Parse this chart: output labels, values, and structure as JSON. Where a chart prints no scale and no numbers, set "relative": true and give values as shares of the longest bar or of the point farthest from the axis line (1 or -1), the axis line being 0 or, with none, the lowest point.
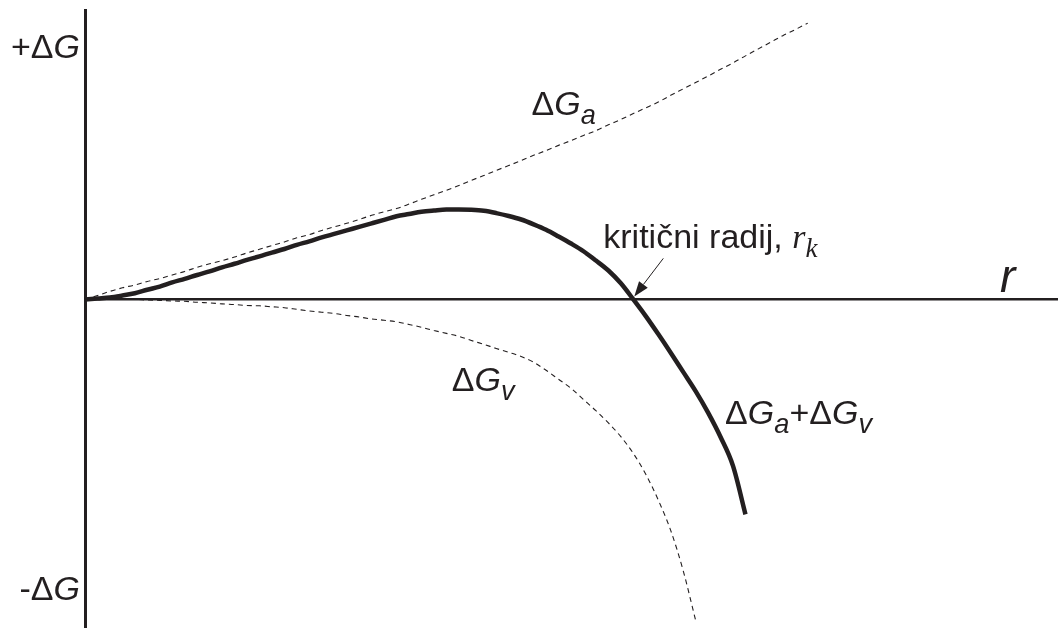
{
  "chart_data": {
    "type": "line",
    "relative": true,
    "xlabel": "r",
    "marker": "none",
    "legend": false,
    "grid": false,
    "categories": [
      null,
      null,
      null,
      null,
      null,
      null,
      null,
      null,
      null,
      null,
      null,
      null,
      null,
      null,
      null,
      null,
      null,
      null,
      null,
      null,
      null,
      null,
      null,
      null,
      null,
      null,
      null,
      null,
      null,
      null,
      null,
      null,
      null,
      null,
      null,
      null,
      null,
      null,
      null,
      null,
      null,
      null,
      null,
      null,
      null,
      null,
      null,
      null,
      null,
      null,
      null,
      null,
      null,
      null,
      null,
      null,
      null,
      null,
      null,
      null,
      null,
      null,
      null,
      null,
      null,
      null,
      null,
      null,
      null,
      null,
      null,
      null,
      null,
      null,
      null,
      null,
      null,
      null,
      null
    ],
    "series": [
      {
        "name": "ΔG$_{a}$",
        "color": "#231f20",
        "line_style": "dashed",
        "values": [
          0,
          0.012,
          0.025,
          0.036,
          0.045,
          0.056,
          0.065,
          0.076,
          0.087,
          0.1,
          0.111,
          0.121,
          0.132,
          0.145,
          0.156,
          0.168,
          0.179,
          0.192,
          0.202,
          0.215,
          0.226,
          0.237,
          0.249,
          0.262,
          0.273,
          0.283,
          0.297,
          0.312,
          0.326,
          0.34,
          0.355,
          0.371,
          0.386,
          0.402,
          0.417,
          0.433,
          0.449,
          0.464,
          0.48,
          0.495,
          0.511,
          0.526,
          0.544,
          0.561,
          0.579,
          0.597,
          0.615,
          0.636,
          0.656,
          0.676,
          0.696,
          0.717,
          0.737,
          0.759,
          0.78,
          0.801,
          0.822,
          0.841,
          0.861,
          null,
          null,
          null,
          null,
          null,
          null,
          null,
          null,
          null,
          null,
          null,
          null,
          null,
          null,
          null,
          null,
          null,
          null,
          null,
          null
        ]
      },
      {
        "name": "ΔG$_{v}$",
        "color": "#231f20",
        "line_style": "dashed",
        "values": [
          0,
          0,
          0,
          0,
          0,
          -0.002,
          -0.003,
          -0.005,
          -0.006,
          -0.009,
          -0.011,
          -0.014,
          -0.016,
          -0.019,
          -0.02,
          -0.023,
          -0.026,
          -0.031,
          -0.036,
          -0.04,
          -0.044,
          -0.05,
          -0.055,
          -0.061,
          -0.065,
          -0.07,
          -0.078,
          -0.087,
          -0.097,
          -0.106,
          -0.115,
          -0.128,
          -0.14,
          -0.153,
          -0.165,
          -0.178,
          -0.196,
          -0.221,
          -0.249,
          -0.277,
          -0.312,
          -0.347,
          -0.385,
          -0.428,
          -0.48,
          -0.545,
          -0.625,
          -0.72,
          -0.845,
          -1,
          null,
          null,
          null,
          null,
          null,
          null,
          null,
          null,
          null,
          null,
          null,
          null,
          null,
          null,
          null,
          null,
          null,
          null,
          null,
          null,
          null,
          null,
          null,
          null,
          null,
          null,
          null,
          null,
          null
        ]
      },
      {
        "name": "ΔG$_{a}$+ΔG$_{v}$",
        "color": "#231f20",
        "line_style": "solid",
        "values": [
          0,
          0.003,
          0.006,
          0.012,
          0.019,
          0.03,
          0.04,
          0.053,
          0.064,
          0.076,
          0.087,
          0.1,
          0.111,
          0.123,
          0.134,
          0.146,
          0.157,
          0.17,
          0.181,
          0.193,
          0.204,
          0.215,
          0.226,
          0.237,
          0.248,
          0.259,
          0.266,
          0.273,
          0.277,
          0.28,
          0.28,
          0.279,
          0.276,
          0.269,
          0.26,
          0.249,
          0.234,
          0.217,
          0.196,
          0.174,
          0.15,
          0.121,
          0.09,
          0.05,
          0,
          -0.052,
          -0.108,
          -0.166,
          -0.226,
          -0.286,
          -0.353,
          -0.429,
          -0.519,
          -0.67,
          null,
          null,
          null,
          null,
          null,
          null,
          null,
          null,
          null,
          null,
          null,
          null,
          null,
          null,
          null,
          null,
          null,
          null,
          null,
          null,
          null,
          null,
          null,
          null,
          null
        ]
      }
    ],
    "annotations": [
      "+ΔG",
      "-ΔG",
      "kritični radij, r$_{k}$"
    ]
  }
}
